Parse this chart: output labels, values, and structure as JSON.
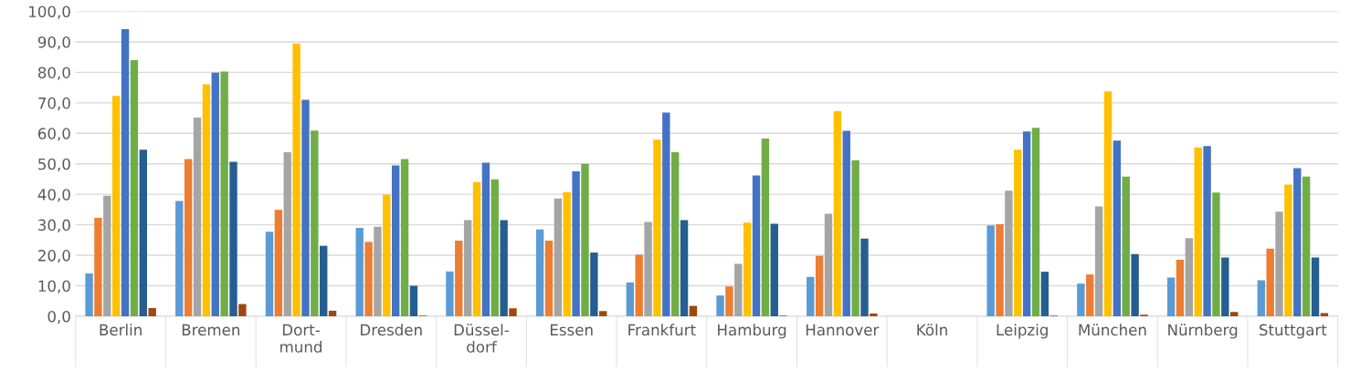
{
  "chart_data": {
    "type": "bar",
    "categories": [
      "Berlin",
      "Bremen",
      "Dort-\nmund",
      "Dresden",
      "Düssel-\ndorf",
      "Essen",
      "Frankfurt",
      "Hamburg",
      "Hannover",
      "Köln",
      "Leipzig",
      "München",
      "Nürnberg",
      "Stuttgart"
    ],
    "series": [
      {
        "color": "#5b9bd5",
        "values": [
          14.0,
          37.8,
          27.7,
          29.0,
          14.7,
          28.5,
          11.1,
          6.8,
          12.9,
          null,
          29.8,
          10.7,
          12.7,
          11.8
        ]
      },
      {
        "color": "#ed7d31",
        "values": [
          32.3,
          51.6,
          34.9,
          24.4,
          24.8,
          24.8,
          20.2,
          9.8,
          19.8,
          null,
          30.2,
          13.7,
          18.5,
          22.2
        ]
      },
      {
        "color": "#a5a5a5",
        "values": [
          39.5,
          65.2,
          53.8,
          29.4,
          31.5,
          38.6,
          30.9,
          17.2,
          33.6,
          null,
          41.2,
          36.0,
          25.6,
          34.3
        ]
      },
      {
        "color": "#ffc000",
        "values": [
          72.3,
          76.1,
          89.5,
          39.9,
          44.0,
          40.7,
          57.9,
          30.7,
          67.3,
          null,
          54.6,
          73.8,
          55.4,
          43.2
        ]
      },
      {
        "color": "#4472c4",
        "values": [
          94.2,
          79.9,
          71.0,
          49.5,
          50.4,
          47.5,
          66.8,
          46.2,
          60.8,
          null,
          60.6,
          57.6,
          55.8,
          48.6
        ]
      },
      {
        "color": "#70ad47",
        "values": [
          84.0,
          80.3,
          60.9,
          51.6,
          44.9,
          50.0,
          53.8,
          58.3,
          51.2,
          null,
          61.8,
          45.8,
          40.6,
          45.8
        ]
      },
      {
        "color": "#255e91",
        "values": [
          54.6,
          50.7,
          23.1,
          10.0,
          31.5,
          20.9,
          31.5,
          30.3,
          25.5,
          null,
          14.6,
          20.4,
          19.3,
          19.3
        ]
      },
      {
        "color": "#9e480e",
        "values": [
          2.7,
          4.0,
          1.8,
          0.2,
          2.6,
          1.7,
          3.4,
          0.2,
          0.9,
          null,
          0.2,
          0.5,
          1.4,
          1.0
        ]
      }
    ],
    "ylim": [
      0,
      100
    ],
    "yticks": [
      {
        "value": 0,
        "label": "0,0"
      },
      {
        "value": 10,
        "label": "10,0"
      },
      {
        "value": 20,
        "label": "20,0"
      },
      {
        "value": 30,
        "label": "30,0"
      },
      {
        "value": 40,
        "label": "40,0"
      },
      {
        "value": 50,
        "label": "50,0"
      },
      {
        "value": 60,
        "label": "60,0"
      },
      {
        "value": 70,
        "label": "70,0"
      },
      {
        "value": 80,
        "label": "80,0"
      },
      {
        "value": 90,
        "label": "90,0"
      },
      {
        "value": 100,
        "label": "100,0"
      }
    ],
    "grid": "y"
  }
}
